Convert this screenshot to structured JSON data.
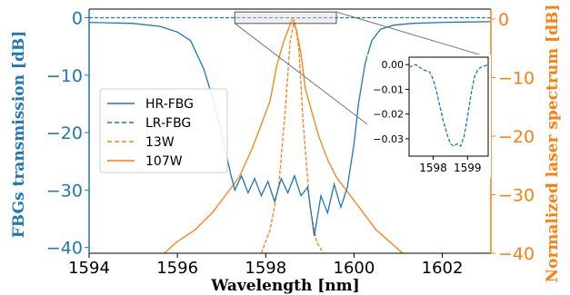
{
  "colors": {
    "blue": "#1f77b4",
    "orange": "#ff7f0e"
  },
  "chart_data": {
    "type": "line",
    "xlabel": "Wavelength [nm]",
    "ylabel_left": "FBGs transmission [dB]",
    "ylabel_right": "Normalized laser spectrum [dB]",
    "xlim": [
      1594,
      1603.1
    ],
    "ylim_left": [
      -41,
      1.5
    ],
    "ylim_right": [
      -40,
      1.7
    ],
    "x_ticks": [
      1594,
      1596,
      1598,
      1600,
      1602
    ],
    "y_left_ticks": [
      0,
      -10,
      -20,
      -30,
      -40
    ],
    "y_right_ticks": [
      0,
      -10,
      -20,
      -30,
      -40
    ],
    "tick_labels": {
      "x": [
        "1594",
        "1596",
        "1598",
        "1600",
        "1602"
      ],
      "y_left": [
        "0",
        "−10",
        "−20",
        "−30",
        "−40"
      ],
      "y_right": [
        "0",
        "−10",
        "−20",
        "−30",
        "−40"
      ]
    },
    "legend": {
      "placement": "center-left",
      "entries": [
        "HR-FBG",
        "LR-FBG",
        "13W",
        "107W"
      ]
    },
    "series": [
      {
        "name": "HR-FBG",
        "axis": "left",
        "style": "solid",
        "color": "#1f77b4",
        "x": [
          1594,
          1595,
          1595.6,
          1596.0,
          1596.3,
          1596.6,
          1596.8,
          1597.0,
          1597.2,
          1597.3,
          1597.45,
          1597.6,
          1597.75,
          1597.9,
          1598.05,
          1598.2,
          1598.35,
          1598.5,
          1598.65,
          1598.8,
          1598.95,
          1599.1,
          1599.25,
          1599.4,
          1599.55,
          1599.7,
          1599.85,
          1600.0,
          1600.1,
          1600.25,
          1600.4,
          1600.6,
          1600.9,
          1601.3,
          1602,
          1603.1
        ],
        "y": [
          -0.8,
          -1.0,
          -1.5,
          -2.5,
          -4.0,
          -9.0,
          -14.0,
          -20.0,
          -27.0,
          -30.0,
          -27.5,
          -30.5,
          -28.0,
          -31.0,
          -28.5,
          -32.0,
          -28.0,
          -30.5,
          -27.5,
          -31.0,
          -29.5,
          -38.0,
          -31.0,
          -34.0,
          -29.0,
          -33.0,
          -29.5,
          -22.0,
          -15.0,
          -8.0,
          -4.0,
          -2.0,
          -1.3,
          -1.0,
          -0.8,
          -0.7
        ]
      },
      {
        "name": "LR-FBG",
        "axis": "left",
        "style": "dashed",
        "color": "#1f77b4",
        "x": [
          1594,
          1598.4,
          1598.6,
          1598.8,
          1599.0,
          1599.2,
          1603.1
        ],
        "y": [
          0,
          0,
          -0.02,
          -0.03,
          -0.02,
          0,
          0
        ]
      },
      {
        "name": "13W",
        "axis": "right",
        "style": "dashed",
        "color": "#ff7f0e",
        "x": [
          1597.9,
          1598.1,
          1598.3,
          1598.45,
          1598.55,
          1598.65,
          1598.75,
          1598.85,
          1599.0,
          1599.15,
          1599.3
        ],
        "y": [
          -40,
          -36,
          -28,
          -15,
          -4,
          0,
          -5,
          -18,
          -32,
          -38,
          -40
        ]
      },
      {
        "name": "107W",
        "axis": "right",
        "style": "solid",
        "color": "#ff7f0e",
        "x": [
          1595.7,
          1596.0,
          1596.4,
          1596.8,
          1597.1,
          1597.4,
          1597.7,
          1597.9,
          1598.1,
          1598.25,
          1598.4,
          1598.5,
          1598.6,
          1598.7,
          1598.8,
          1598.9,
          1599.05,
          1599.2,
          1599.4,
          1599.6,
          1599.9,
          1600.2,
          1600.5,
          1600.8,
          1601.1
        ],
        "y": [
          -40,
          -38,
          -36,
          -33,
          -30,
          -27,
          -22,
          -18,
          -14,
          -8,
          -4,
          -2,
          0,
          -2,
          -6,
          -12,
          -16,
          -20,
          -24,
          -27,
          -30,
          -33,
          -36,
          -38,
          -40
        ]
      }
    ],
    "inset": {
      "type": "line",
      "series": "LR-FBG",
      "style": "dashed",
      "color": "#1f77b4",
      "xlim": [
        1597.3,
        1599.6
      ],
      "ylim": [
        -0.037,
        0.003
      ],
      "x_ticks": [
        1598,
        1599
      ],
      "x_tick_labels": [
        "1598",
        "1599"
      ],
      "y_ticks": [
        0.0,
        -0.01,
        -0.02,
        -0.03
      ],
      "y_tick_labels": [
        "0.00",
        "−0.01",
        "−0.02",
        "−0.03"
      ],
      "x": [
        1597.3,
        1597.5,
        1597.7,
        1597.9,
        1598.0,
        1598.1,
        1598.2,
        1598.3,
        1598.4,
        1598.5,
        1598.6,
        1598.7,
        1598.8,
        1598.9,
        1599.0,
        1599.1,
        1599.2,
        1599.3,
        1599.4,
        1599.6
      ],
      "y": [
        -0.001,
        0.0,
        -0.002,
        -0.003,
        -0.006,
        -0.011,
        -0.017,
        -0.023,
        -0.028,
        -0.032,
        -0.033,
        -0.032,
        -0.033,
        -0.029,
        -0.021,
        -0.012,
        -0.005,
        -0.002,
        -0.001,
        0.0
      ]
    }
  }
}
